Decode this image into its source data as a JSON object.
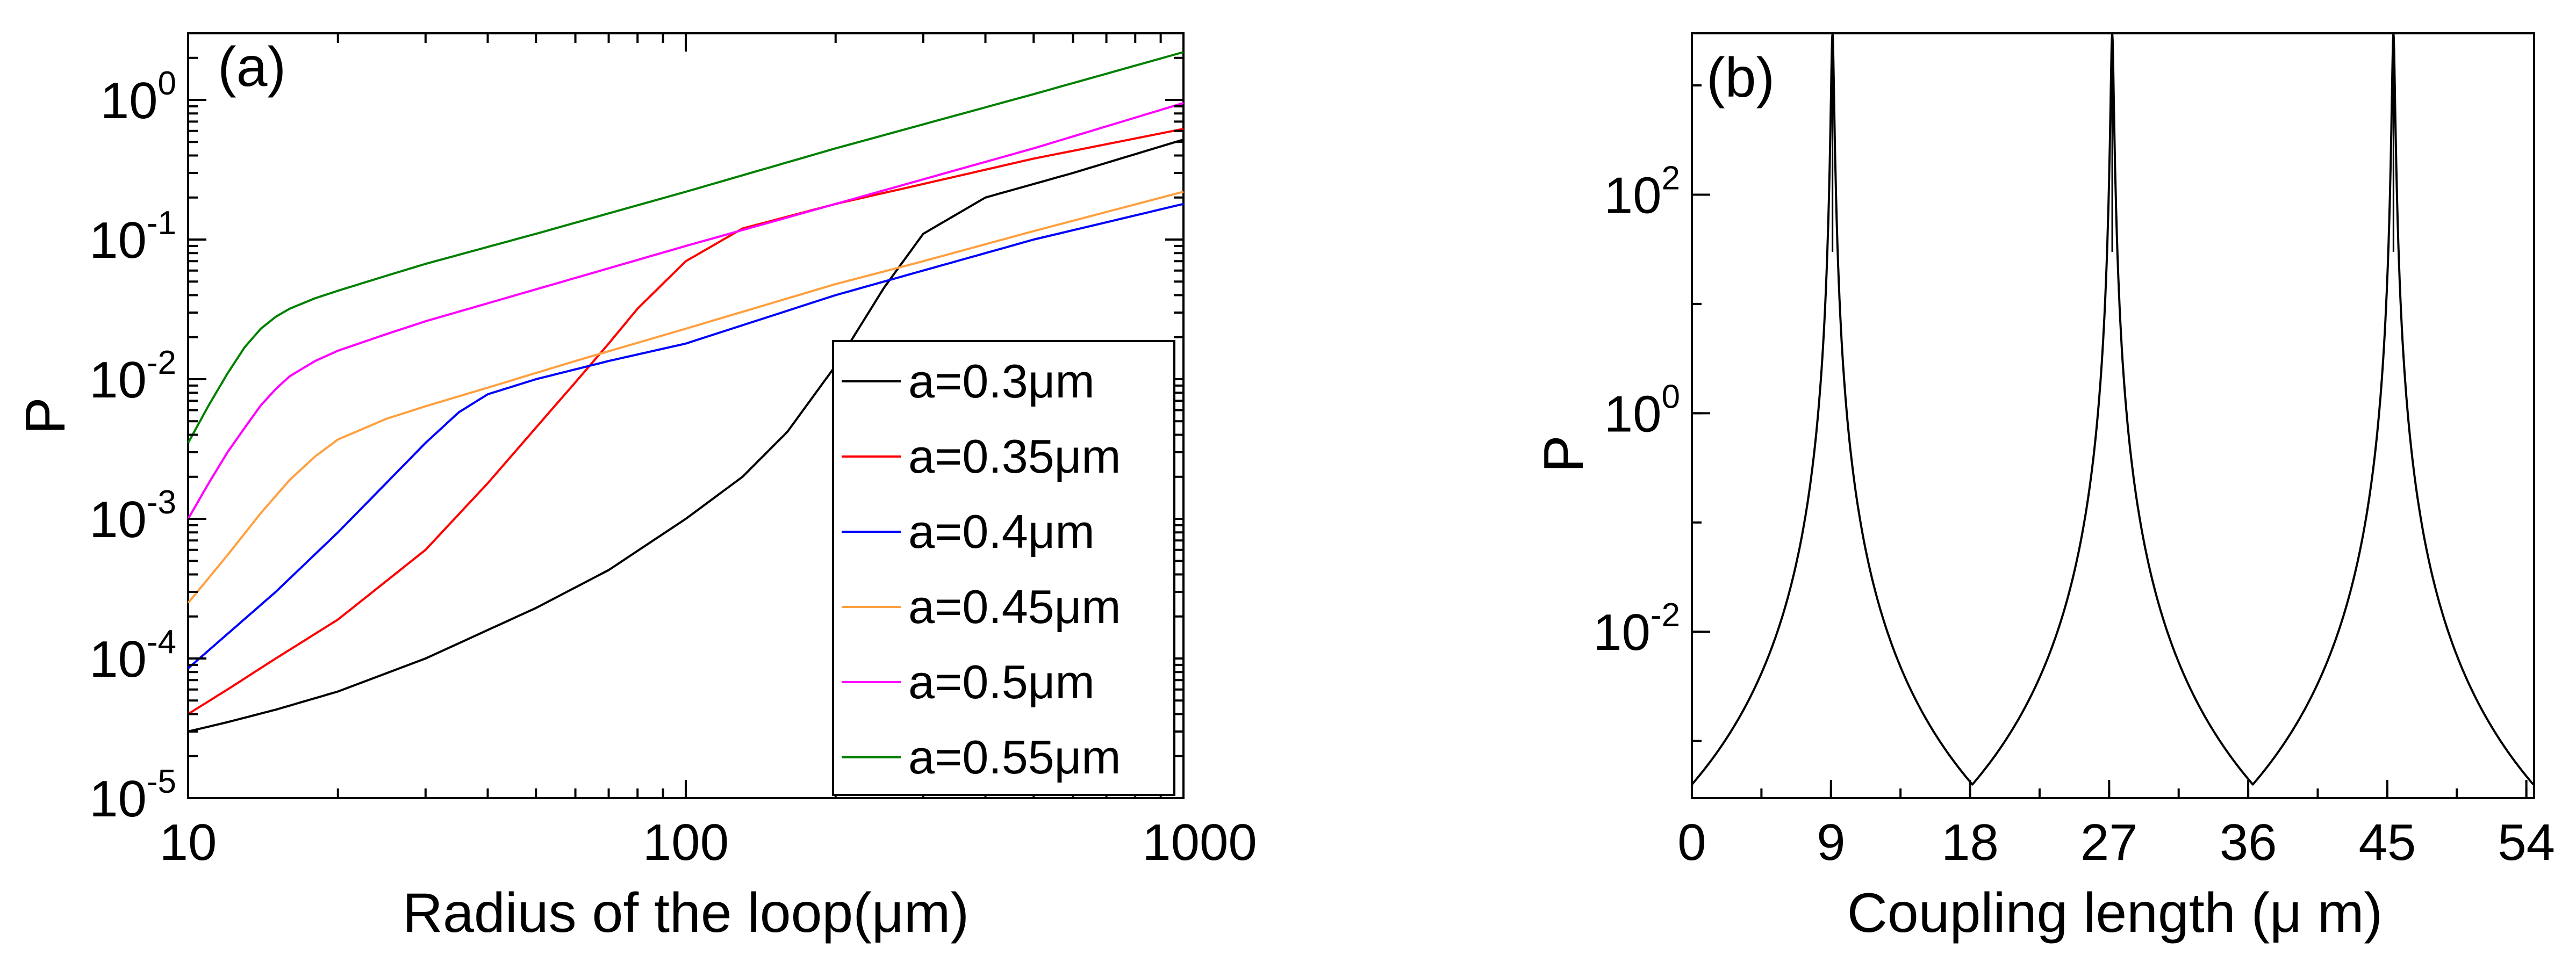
{
  "chart_data": [
    {
      "type": "line",
      "panel_label": "(a)",
      "title": "",
      "xlabel": "Radius of the loop(μm)",
      "ylabel": "P",
      "xscale": "log",
      "yscale": "log",
      "xlim": [
        10,
        1000
      ],
      "ylim": [
        1e-05,
        3
      ],
      "x_ticks": [
        {
          "value": 10,
          "label": "10"
        },
        {
          "value": 100,
          "label": "100"
        },
        {
          "value": 1000,
          "label": "1000"
        }
      ],
      "y_ticks": [
        {
          "value": 1e-05,
          "base": "10",
          "exp": "-5"
        },
        {
          "value": 0.0001,
          "base": "10",
          "exp": "-4"
        },
        {
          "value": 0.001,
          "base": "10",
          "exp": "-3"
        },
        {
          "value": 0.01,
          "base": "10",
          "exp": "-2"
        },
        {
          "value": 0.1,
          "base": "10",
          "exp": "-1"
        },
        {
          "value": 1,
          "base": "10",
          "exp": "0"
        }
      ],
      "legend_position": "bottom-right",
      "series": [
        {
          "name": "a=0.3μm",
          "color": "#000000",
          "x": [
            10,
            12,
            15,
            20,
            30,
            50,
            70,
            100,
            130,
            160,
            200,
            250,
            300,
            400,
            600,
            1000
          ],
          "y": [
            3e-05,
            3.5e-05,
            4.3e-05,
            5.8e-05,
            0.0001,
            0.00023,
            0.00043,
            0.001,
            0.002,
            0.0042,
            0.0125,
            0.045,
            0.11,
            0.2,
            0.3,
            0.52
          ]
        },
        {
          "name": "a=0.35μm",
          "color": "#ff0000",
          "x": [
            10,
            12,
            15,
            20,
            30,
            40,
            50,
            60,
            70,
            80,
            100,
            130,
            200,
            300,
            500,
            1000
          ],
          "y": [
            4e-05,
            6e-05,
            0.0001,
            0.00019,
            0.0006,
            0.0018,
            0.0045,
            0.0095,
            0.018,
            0.032,
            0.07,
            0.12,
            0.18,
            0.25,
            0.38,
            0.62
          ]
        },
        {
          "name": "a=0.4μm",
          "color": "#0000ff",
          "x": [
            10,
            12,
            15,
            20,
            25,
            30,
            35,
            40,
            50,
            70,
            100,
            200,
            300,
            500,
            1000
          ],
          "y": [
            8.5e-05,
            0.00015,
            0.0003,
            0.0008,
            0.0018,
            0.0035,
            0.0058,
            0.0078,
            0.01,
            0.0135,
            0.018,
            0.04,
            0.06,
            0.1,
            0.18
          ]
        },
        {
          "name": "a=0.45μm",
          "color": "#ffa040",
          "x": [
            10,
            12,
            14,
            16,
            18,
            20,
            25,
            30,
            40,
            60,
            100,
            200,
            300,
            500,
            1000
          ],
          "y": [
            0.00025,
            0.00055,
            0.0011,
            0.0019,
            0.0028,
            0.0037,
            0.0052,
            0.0064,
            0.0087,
            0.0135,
            0.023,
            0.048,
            0.07,
            0.115,
            0.22
          ]
        },
        {
          "name": "a=0.5μm",
          "color": "#ff00ff",
          "x": [
            10,
            11,
            12,
            13,
            14,
            15,
            16,
            18,
            20,
            25,
            30,
            50,
            100,
            200,
            500,
            1000
          ],
          "y": [
            0.001,
            0.0018,
            0.003,
            0.0045,
            0.0065,
            0.0085,
            0.0105,
            0.0135,
            0.016,
            0.021,
            0.026,
            0.044,
            0.09,
            0.18,
            0.45,
            0.95
          ]
        },
        {
          "name": "a=0.55μm",
          "color": "#008000",
          "x": [
            10,
            11,
            12,
            13,
            14,
            15,
            16,
            18,
            20,
            25,
            30,
            50,
            100,
            200,
            500,
            1000
          ],
          "y": [
            0.0035,
            0.0065,
            0.011,
            0.017,
            0.023,
            0.028,
            0.032,
            0.038,
            0.043,
            0.055,
            0.067,
            0.11,
            0.22,
            0.45,
            1.1,
            2.2
          ]
        }
      ]
    },
    {
      "type": "line",
      "panel_label": "(b)",
      "title": "",
      "xlabel": "Coupling length (μ m)",
      "ylabel": "P",
      "xscale": "linear",
      "yscale": "log",
      "xlim": [
        0,
        54.5
      ],
      "ylim": [
        0.0003,
        3000
      ],
      "x_ticks": [
        {
          "value": 0,
          "label": "0"
        },
        {
          "value": 9,
          "label": "9"
        },
        {
          "value": 18,
          "label": "18"
        },
        {
          "value": 27,
          "label": "27"
        },
        {
          "value": 36,
          "label": "36"
        },
        {
          "value": 45,
          "label": "45"
        },
        {
          "value": 54,
          "label": "54"
        }
      ],
      "y_ticks": [
        {
          "value": 0.01,
          "base": "10",
          "exp": "-2"
        },
        {
          "value": 1,
          "base": "10",
          "exp": "0"
        },
        {
          "value": 100,
          "base": "10",
          "exp": "2"
        }
      ],
      "minima": [
        0,
        18.15,
        36.3,
        54.45
      ],
      "peaks": [
        9.1,
        27.2,
        45.4
      ],
      "series": [
        {
          "name": "",
          "color": "#000000",
          "pattern": "periodic_peaks",
          "min_value": 0.0004,
          "peak_value": 3000
        }
      ]
    }
  ]
}
